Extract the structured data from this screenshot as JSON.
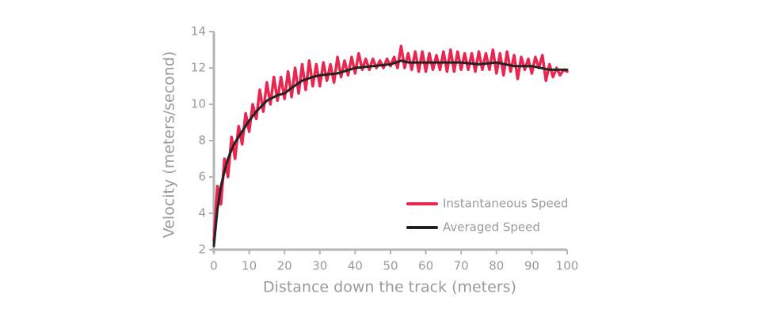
{
  "chart_data": {
    "type": "line",
    "xlabel": "Distance down the track (meters)",
    "ylabel": "Velocity (meters/second)",
    "xlim": [
      0,
      100
    ],
    "xticks": [
      0,
      10,
      20,
      30,
      40,
      50,
      60,
      70,
      80,
      90,
      100
    ],
    "ylim": [
      2,
      14
    ],
    "yticks": [
      2,
      4,
      6,
      8,
      10,
      12,
      14
    ],
    "legend": "lower right",
    "series": [
      {
        "name": "Instantaneous Speed",
        "color": "#e8264f",
        "x": [
          0,
          1,
          2,
          3,
          4,
          5,
          6,
          7,
          8,
          9,
          10,
          11,
          12,
          13,
          14,
          15,
          16,
          17,
          18,
          19,
          20,
          21,
          22,
          23,
          24,
          25,
          26,
          27,
          28,
          29,
          30,
          31,
          32,
          33,
          34,
          35,
          36,
          37,
          38,
          39,
          40,
          41,
          42,
          43,
          44,
          45,
          46,
          47,
          48,
          49,
          50,
          51,
          52,
          53,
          54,
          55,
          56,
          57,
          58,
          59,
          60,
          61,
          62,
          63,
          64,
          65,
          66,
          67,
          68,
          69,
          70,
          71,
          72,
          73,
          74,
          75,
          76,
          77,
          78,
          79,
          80,
          81,
          82,
          83,
          84,
          85,
          86,
          87,
          88,
          89,
          90,
          91,
          92,
          93,
          94,
          95,
          96,
          97,
          98,
          99,
          100
        ],
        "values": [
          2.5,
          5.5,
          4.5,
          7.0,
          6.0,
          8.2,
          7.0,
          8.8,
          7.8,
          9.5,
          8.5,
          10.0,
          9.2,
          10.8,
          9.6,
          11.2,
          10.0,
          11.5,
          10.2,
          11.5,
          10.3,
          11.8,
          10.4,
          12.0,
          10.6,
          12.2,
          10.8,
          12.4,
          11.0,
          12.2,
          11.0,
          12.3,
          11.3,
          12.2,
          11.2,
          12.6,
          11.5,
          12.4,
          11.6,
          12.6,
          11.7,
          12.8,
          11.9,
          12.5,
          11.9,
          12.5,
          12.0,
          12.4,
          12.0,
          12.5,
          12.1,
          12.6,
          12.0,
          13.2,
          12.0,
          12.8,
          11.9,
          12.9,
          11.8,
          12.9,
          11.8,
          12.8,
          11.9,
          12.7,
          11.9,
          12.9,
          11.8,
          13.0,
          11.8,
          12.9,
          11.9,
          12.8,
          11.9,
          12.8,
          11.8,
          12.9,
          11.9,
          12.8,
          11.9,
          13.0,
          11.7,
          12.8,
          11.6,
          12.9,
          11.8,
          12.7,
          11.4,
          12.6,
          11.9,
          12.5,
          11.7,
          12.6,
          12.0,
          12.7,
          11.3,
          12.2,
          11.5,
          12.0,
          11.6,
          11.9,
          11.8
        ]
      },
      {
        "name": "Averaged Speed",
        "color": "#222222",
        "x": [
          0,
          1,
          2,
          3,
          4,
          5,
          6,
          8,
          10,
          12,
          15,
          18,
          20,
          22,
          25,
          28,
          30,
          35,
          40,
          45,
          50,
          53,
          55,
          60,
          65,
          70,
          75,
          80,
          85,
          90,
          95,
          100
        ],
        "values": [
          2.2,
          4.2,
          5.5,
          6.3,
          7.0,
          7.5,
          7.9,
          8.5,
          9.1,
          9.6,
          10.2,
          10.5,
          10.6,
          10.9,
          11.3,
          11.5,
          11.6,
          11.7,
          12.0,
          12.1,
          12.2,
          12.4,
          12.3,
          12.3,
          12.3,
          12.3,
          12.2,
          12.3,
          12.1,
          12.1,
          11.9,
          11.9
        ]
      }
    ]
  }
}
